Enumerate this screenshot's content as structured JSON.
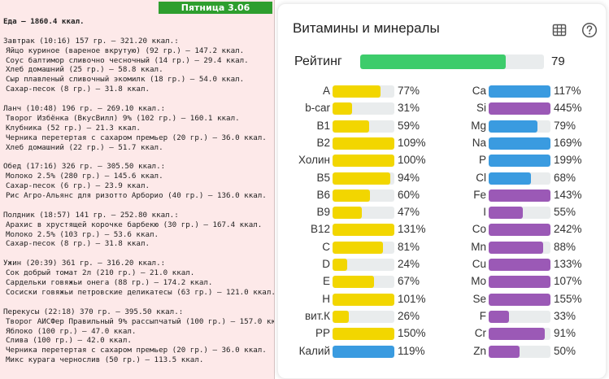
{
  "diary": {
    "day": "Пятница 3.06",
    "lines": [
      {
        "type": "total",
        "text": "Еда — 1860.4 ккал."
      },
      {
        "type": "gap",
        "text": ""
      },
      {
        "type": "meal",
        "text": "Завтрак (10:16) 157 гр. — 321.20 ккал.:"
      },
      {
        "type": "item",
        "text": "Яйцо куриное (вареное вкрутую) (92 гр.) — 147.2 ккал."
      },
      {
        "type": "item",
        "text": "Соус балтимор сливочно чесночный (14 гр.) — 29.4 ккал."
      },
      {
        "type": "item",
        "text": "Хлеб домашний (25 гр.) — 58.8 ккал."
      },
      {
        "type": "item",
        "text": "Сыр плавленый сливочный экомилк (18 гр.) — 54.0 ккал."
      },
      {
        "type": "item",
        "text": "Сахар-песок (8 гр.) — 31.8 ккал."
      },
      {
        "type": "gap",
        "text": ""
      },
      {
        "type": "meal",
        "text": "Ланч (10:48) 196 гр. — 269.10 ккал.:"
      },
      {
        "type": "item",
        "text": "Творог Избёнка (ВкусВилл) 9% (102 гр.) — 160.1 ккал."
      },
      {
        "type": "item",
        "text": "Клубника (52 гр.) — 21.3 ккал."
      },
      {
        "type": "item",
        "text": "Черника перетертая с сахаром премьер (20 гр.) — 36.0 ккал."
      },
      {
        "type": "item",
        "text": "Хлеб домашний (22 гр.) — 51.7 ккал."
      },
      {
        "type": "gap",
        "text": ""
      },
      {
        "type": "meal",
        "text": "Обед (17:16) 326 гр. — 305.50 ккал.:"
      },
      {
        "type": "item",
        "text": "Молоко 2.5% (280 гр.) — 145.6 ккал."
      },
      {
        "type": "item",
        "text": "Сахар-песок (6 гр.) — 23.9 ккал."
      },
      {
        "type": "item",
        "text": "Рис Агро-Альянс для ризотто Арборио (40 гр.) — 136.0 ккал."
      },
      {
        "type": "gap",
        "text": ""
      },
      {
        "type": "meal",
        "text": "Полдник (18:57) 141 гр. — 252.80 ккал.:"
      },
      {
        "type": "item",
        "text": "Арахис в хрустящей корочке барбекю (30 гр.) — 167.4 ккал."
      },
      {
        "type": "item",
        "text": "Молоко 2.5% (103 гр.) — 53.6 ккал."
      },
      {
        "type": "item",
        "text": "Сахар-песок (8 гр.) — 31.8 ккал."
      },
      {
        "type": "gap",
        "text": ""
      },
      {
        "type": "meal",
        "text": "Ужин (20:39) 361 гр. — 316.20 ккал.:"
      },
      {
        "type": "item",
        "text": "Сок добрый томат 2л (210 гр.) — 21.0 ккал."
      },
      {
        "type": "item",
        "text": "Сардельки говяжьи онега (88 гр.) — 174.2 ккал."
      },
      {
        "type": "item",
        "text": "Сосиски говяжьи петровские деликатесы (63 гр.) — 121.0 ккал."
      },
      {
        "type": "gap",
        "text": ""
      },
      {
        "type": "meal",
        "text": "Перекусы (22:18) 370 гр. — 395.50 ккал.:"
      },
      {
        "type": "item",
        "text": "Творог АИСФер Правильный 9% рассыпчатый (100 гр.) — 157.0 ккал."
      },
      {
        "type": "item",
        "text": "Яблоко (100 гр.) — 47.0 ккал."
      },
      {
        "type": "item",
        "text": "Слива (100 гр.) — 42.0 ккал."
      },
      {
        "type": "item",
        "text": "Черника перетертая с сахаром премьер (20 гр.) — 36.0 ккал."
      },
      {
        "type": "item",
        "text": "Микс курага чернослив (50 гр.) — 113.5 ккал."
      }
    ]
  },
  "vitamins": {
    "title": "Витамины и минералы",
    "table_icon": "table-icon",
    "help_icon": "help-icon",
    "rating_label": "Рейтинг",
    "rating_value": "79",
    "rating_percent": 79,
    "colors": {
      "rating": "#3dcc6b",
      "vitamin": "#f2d600",
      "mineral": "#9b59b6",
      "blue": "#3a9be0",
      "track": "#e9eced"
    },
    "left": [
      {
        "name": "A",
        "pct": "77%",
        "value": 77,
        "color": "yellow"
      },
      {
        "name": "b-car",
        "pct": "31%",
        "value": 31,
        "color": "yellow"
      },
      {
        "name": "B1",
        "pct": "59%",
        "value": 59,
        "color": "yellow"
      },
      {
        "name": "B2",
        "pct": "109%",
        "value": 109,
        "color": "yellow"
      },
      {
        "name": "Холин",
        "pct": "100%",
        "value": 100,
        "color": "yellow"
      },
      {
        "name": "B5",
        "pct": "94%",
        "value": 94,
        "color": "yellow"
      },
      {
        "name": "B6",
        "pct": "60%",
        "value": 60,
        "color": "yellow"
      },
      {
        "name": "B9",
        "pct": "47%",
        "value": 47,
        "color": "yellow"
      },
      {
        "name": "B12",
        "pct": "131%",
        "value": 131,
        "color": "yellow"
      },
      {
        "name": "C",
        "pct": "81%",
        "value": 81,
        "color": "yellow"
      },
      {
        "name": "D",
        "pct": "24%",
        "value": 24,
        "color": "yellow"
      },
      {
        "name": "E",
        "pct": "67%",
        "value": 67,
        "color": "yellow"
      },
      {
        "name": "H",
        "pct": "101%",
        "value": 101,
        "color": "yellow"
      },
      {
        "name": "вит.К",
        "pct": "26%",
        "value": 26,
        "color": "yellow"
      },
      {
        "name": "PP",
        "pct": "150%",
        "value": 150,
        "color": "yellow"
      },
      {
        "name": "Калий",
        "pct": "119%",
        "value": 119,
        "color": "blue"
      }
    ],
    "right": [
      {
        "name": "Ca",
        "pct": "117%",
        "value": 117,
        "color": "blue"
      },
      {
        "name": "Si",
        "pct": "445%",
        "value": 445,
        "color": "purple"
      },
      {
        "name": "Mg",
        "pct": "79%",
        "value": 79,
        "color": "blue"
      },
      {
        "name": "Na",
        "pct": "169%",
        "value": 169,
        "color": "blue"
      },
      {
        "name": "P",
        "pct": "199%",
        "value": 199,
        "color": "blue"
      },
      {
        "name": "Cl",
        "pct": "68%",
        "value": 68,
        "color": "blue"
      },
      {
        "name": "Fe",
        "pct": "143%",
        "value": 143,
        "color": "purple"
      },
      {
        "name": "I",
        "pct": "55%",
        "value": 55,
        "color": "purple"
      },
      {
        "name": "Co",
        "pct": "242%",
        "value": 242,
        "color": "purple"
      },
      {
        "name": "Mn",
        "pct": "88%",
        "value": 88,
        "color": "purple"
      },
      {
        "name": "Cu",
        "pct": "133%",
        "value": 133,
        "color": "purple"
      },
      {
        "name": "Mo",
        "pct": "107%",
        "value": 107,
        "color": "purple"
      },
      {
        "name": "Se",
        "pct": "155%",
        "value": 155,
        "color": "purple"
      },
      {
        "name": "F",
        "pct": "33%",
        "value": 33,
        "color": "purple"
      },
      {
        "name": "Cr",
        "pct": "91%",
        "value": 91,
        "color": "purple"
      },
      {
        "name": "Zn",
        "pct": "50%",
        "value": 50,
        "color": "purple"
      }
    ]
  }
}
